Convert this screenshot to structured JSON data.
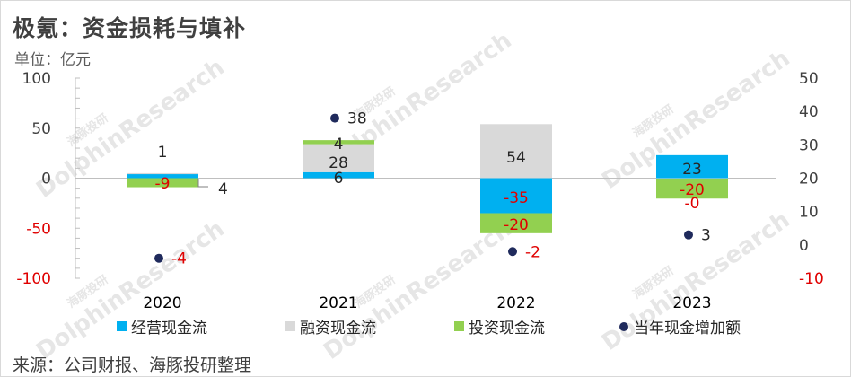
{
  "header": {
    "title": "极氪：资金损耗与填补",
    "unit": "单位：亿元"
  },
  "footer": {
    "source": "来源：公司财报、海豚投研整理"
  },
  "watermark": {
    "text": "DolphinResearch",
    "cn": "海豚投研"
  },
  "colors": {
    "operating": "#00b0f0",
    "financing": "#d9d9d9",
    "investing": "#92d050",
    "net": "#1f2a5c",
    "negative_label": "#e00000"
  },
  "chart_data": {
    "type": "bar",
    "stacked": true,
    "categories": [
      "2020",
      "2021",
      "2022",
      "2023"
    ],
    "series": [
      {
        "name": "经营现金流",
        "values": [
          4,
          6,
          -35,
          23
        ]
      },
      {
        "name": "融资现金流",
        "values": [
          1,
          28,
          54,
          -0.4
        ]
      },
      {
        "name": "投资现金流",
        "values": [
          -9,
          4,
          -20,
          -20
        ]
      }
    ],
    "bar_labels": [
      [
        "4",
        "6",
        "-35",
        "23"
      ],
      [
        "1",
        "28",
        "54",
        "-0"
      ],
      [
        "-9",
        "4",
        "-20",
        "-20"
      ]
    ],
    "line_series": {
      "name": "当年现金增加额",
      "axis": "right",
      "values": [
        -4,
        38,
        -2,
        3
      ],
      "labels": [
        "-4",
        "38",
        "-2",
        "3"
      ]
    },
    "y_left": {
      "min": -100,
      "max": 100,
      "ticks": [
        100,
        50,
        0,
        -50,
        -100
      ],
      "tick_labels": [
        "100",
        "50",
        "0",
        "-50",
        "-100"
      ]
    },
    "y_right": {
      "min": -10,
      "max": 50,
      "ticks": [
        50,
        40,
        30,
        20,
        10,
        0,
        -10
      ],
      "tick_labels": [
        "50",
        "40",
        "30",
        "20",
        "10",
        "0",
        "-10"
      ]
    },
    "grid": false,
    "legend_position": "bottom"
  }
}
